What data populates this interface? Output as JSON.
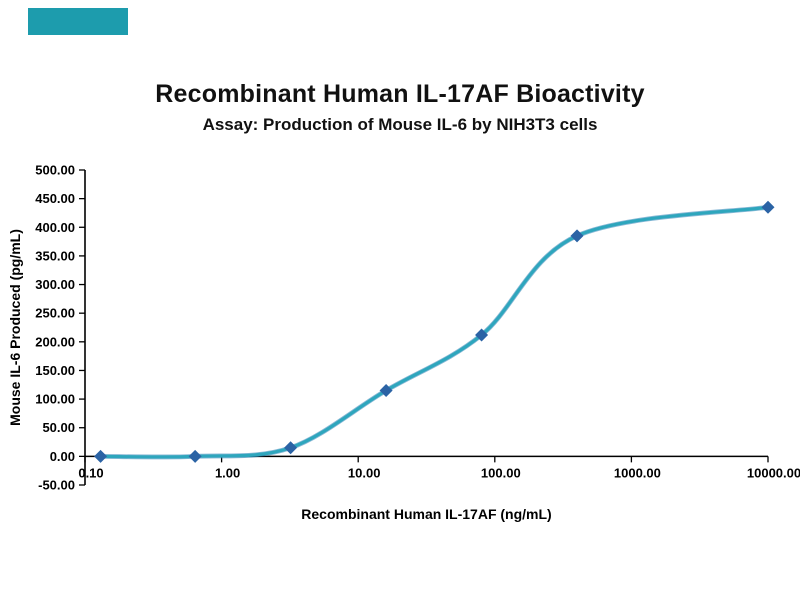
{
  "decoration": {
    "corner_swatch_color": "#1D9CAD"
  },
  "chart_data": {
    "type": "line",
    "title": "Recombinant Human IL-17AF Bioactivity",
    "subtitle": "Assay: Production of Mouse IL-6 by NIH3T3 cells",
    "xlabel": "Recombinant Human IL-17AF (ng/mL)",
    "ylabel": "Mouse IL-6 Produced (pg/mL)",
    "x_scale": "log",
    "xlim": [
      0.1,
      10000
    ],
    "ylim": [
      -50,
      500
    ],
    "x_axis_crosses_at": 0,
    "grid": false,
    "legend": false,
    "x_ticks": [
      0.1,
      1,
      10,
      100,
      1000,
      10000
    ],
    "x_tick_labels": [
      "0.10",
      "1.00",
      "10.00",
      "100.00",
      "1000.00",
      "10000.00"
    ],
    "y_ticks": [
      -50,
      0,
      50,
      100,
      150,
      200,
      250,
      300,
      350,
      400,
      450,
      500
    ],
    "y_tick_labels": [
      "-50.00",
      "0.00",
      "50.00",
      "100.00",
      "150.00",
      "200.00",
      "250.00",
      "300.00",
      "350.00",
      "400.00",
      "450.00",
      "500.00"
    ],
    "series": [
      {
        "name": "Mouse IL-6 Produced",
        "x": [
          0.13,
          0.64,
          3.2,
          16,
          80,
          400,
          10000
        ],
        "y": [
          0,
          0,
          15,
          115,
          212,
          385,
          435
        ],
        "line_color": "#2EA6BD",
        "line_underlay_color": "#2B7FB5",
        "marker": "diamond",
        "marker_color": "#2B63A5",
        "line_width": 3.2
      }
    ]
  }
}
